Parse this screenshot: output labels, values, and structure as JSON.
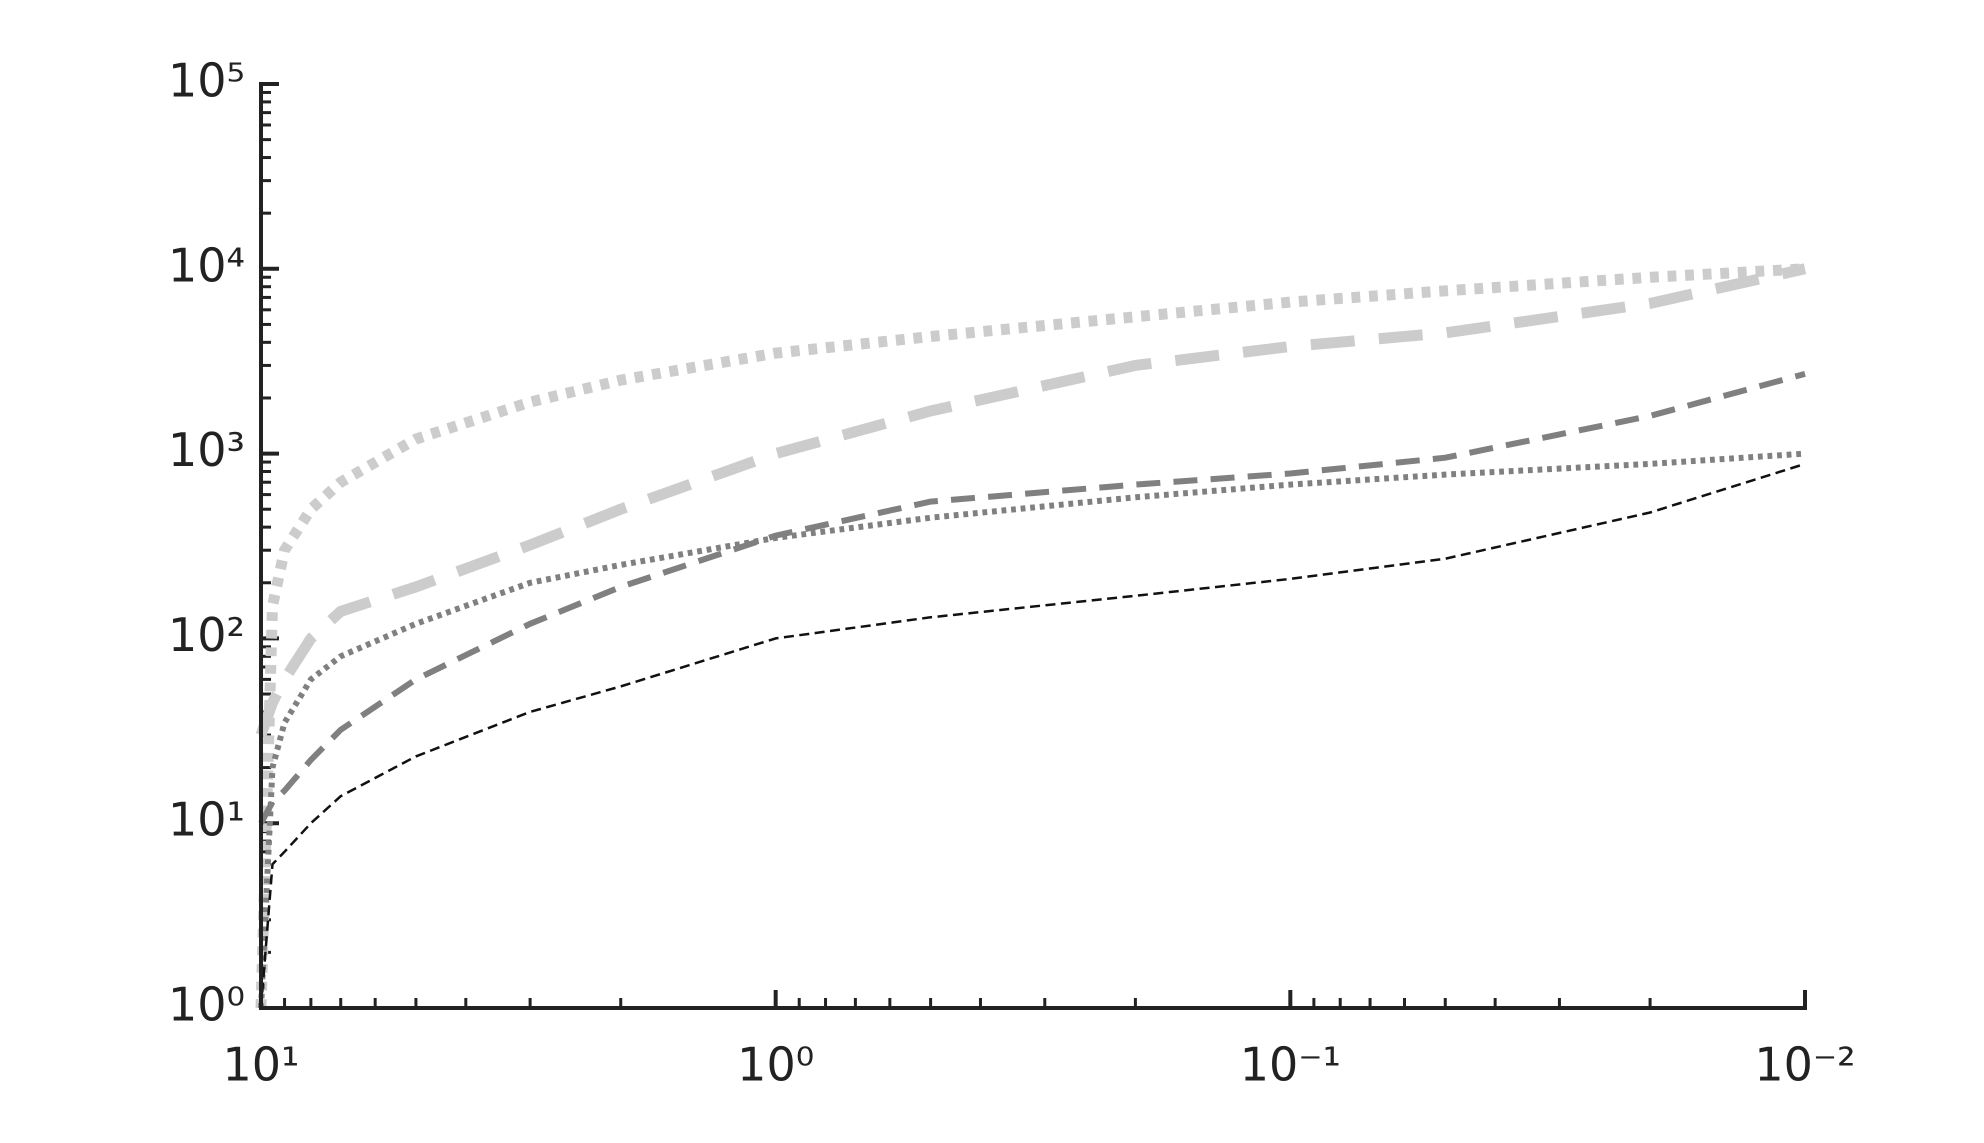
{
  "chart_data": {
    "type": "line",
    "x": [
      10,
      9.5,
      9,
      8,
      7,
      5,
      3,
      2,
      1,
      0.5,
      0.2,
      0.1,
      0.05,
      0.02,
      0.01
    ],
    "series": [
      {
        "color": "#cccccc",
        "dash": "dotted",
        "weight": "heavy",
        "values": [
          1,
          150,
          300,
          500,
          700,
          1200,
          1900,
          2500,
          3500,
          4300,
          5500,
          6600,
          7600,
          9000,
          10000
        ]
      },
      {
        "color": "#cccccc",
        "dash": "dashed",
        "weight": "heavy",
        "values": [
          30,
          45,
          60,
          100,
          140,
          190,
          320,
          500,
          1000,
          1700,
          3000,
          3800,
          4500,
          6500,
          10000
        ]
      },
      {
        "color": "#808080",
        "dash": "dashed",
        "weight": "medium",
        "values": [
          10,
          13,
          15,
          22,
          32,
          60,
          120,
          190,
          360,
          550,
          680,
          780,
          950,
          1600,
          2700
        ]
      },
      {
        "color": "#808080",
        "dash": "dotted",
        "weight": "medium",
        "values": [
          1,
          20,
          35,
          60,
          80,
          120,
          200,
          250,
          350,
          450,
          580,
          680,
          770,
          880,
          1000
        ]
      },
      {
        "color": "#111111",
        "dash": "dashed",
        "weight": "light",
        "values": [
          1,
          6,
          7,
          10,
          14,
          23,
          40,
          55,
          100,
          130,
          170,
          210,
          270,
          480,
          880
        ]
      }
    ],
    "xscale": "log",
    "yscale": "log",
    "xreversed": true,
    "xlim": [
      10,
      0.01
    ],
    "ylim": [
      1,
      100000
    ],
    "xticks": [
      {
        "value": 10,
        "label": "10¹"
      },
      {
        "value": 1,
        "label": "10⁰"
      },
      {
        "value": 0.1,
        "label": "10⁻¹"
      },
      {
        "value": 0.01,
        "label": "10⁻²"
      }
    ],
    "yticks": [
      {
        "value": 1,
        "label": "10⁰"
      },
      {
        "value": 10,
        "label": "10¹"
      },
      {
        "value": 100,
        "label": "10²"
      },
      {
        "value": 1000,
        "label": "10³"
      },
      {
        "value": 10000,
        "label": "10⁴"
      },
      {
        "value": 100000,
        "label": "10⁵"
      }
    ],
    "grid": false
  }
}
